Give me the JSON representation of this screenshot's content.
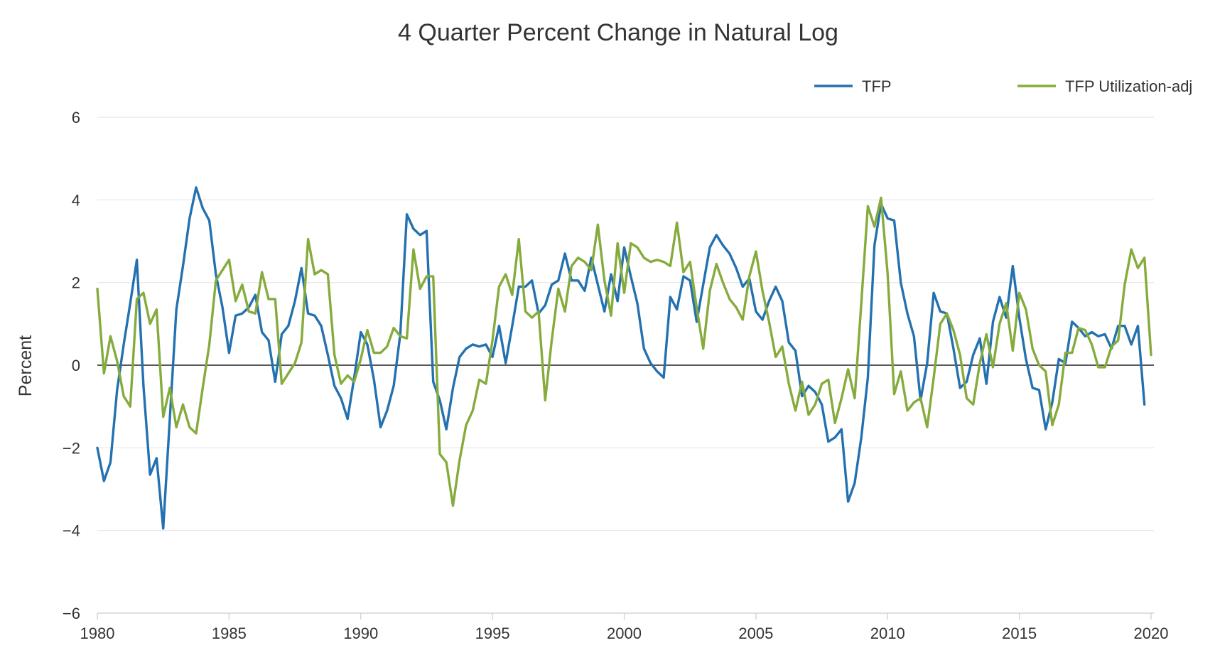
{
  "chart_data": {
    "type": "line",
    "title": "4 Quarter Percent Change in Natural Log",
    "ylabel": "Percent",
    "xlabel": "",
    "xlim": [
      1980,
      2020
    ],
    "ylim": [
      -6,
      6
    ],
    "x_ticks": [
      "1980",
      "1985",
      "1990",
      "1995",
      "2000",
      "2005",
      "2010",
      "2015",
      "2020"
    ],
    "y_ticks": [
      "6",
      "4",
      "2",
      "0",
      "−2",
      "−4",
      "−6"
    ],
    "grid": true,
    "legend_position": "top-right",
    "x_start": 1980.0,
    "x_step": 0.25,
    "series": [
      {
        "name": "TFP",
        "color": "#2471b0",
        "values": [
          -2.0,
          -2.8,
          -2.35,
          -0.6,
          0.5,
          1.5,
          2.55,
          -0.5,
          -2.65,
          -2.25,
          -3.95,
          -1.3,
          1.35,
          2.4,
          3.55,
          4.3,
          3.8,
          3.5,
          2.2,
          1.4,
          0.3,
          1.2,
          1.25,
          1.4,
          1.7,
          0.8,
          0.6,
          -0.4,
          0.75,
          0.95,
          1.55,
          2.35,
          1.25,
          1.2,
          0.95,
          0.25,
          -0.5,
          -0.8,
          -1.3,
          -0.3,
          0.8,
          0.5,
          -0.35,
          -1.5,
          -1.1,
          -0.5,
          0.75,
          3.65,
          3.3,
          3.15,
          3.25,
          -0.4,
          -0.85,
          -1.55,
          -0.55,
          0.2,
          0.4,
          0.5,
          0.45,
          0.5,
          0.2,
          0.95,
          0.05,
          0.95,
          1.9,
          1.9,
          2.05,
          1.25,
          1.45,
          1.95,
          2.05,
          2.7,
          2.05,
          2.05,
          1.8,
          2.6,
          1.95,
          1.3,
          2.2,
          1.55,
          2.85,
          2.15,
          1.5,
          0.4,
          0.05,
          -0.15,
          -0.3,
          1.65,
          1.35,
          2.15,
          2.05,
          1.05,
          1.95,
          2.85,
          3.15,
          2.9,
          2.7,
          2.35,
          1.9,
          2.1,
          1.3,
          1.1,
          1.55,
          1.9,
          1.55,
          0.55,
          0.35,
          -0.75,
          -0.5,
          -0.65,
          -0.95,
          -1.85,
          -1.75,
          -1.55,
          -3.3,
          -2.85,
          -1.75,
          -0.3,
          2.9,
          3.9,
          3.55,
          3.5,
          2.0,
          1.25,
          0.7,
          -0.85,
          0.05,
          1.75,
          1.3,
          1.25,
          0.4,
          -0.55,
          -0.4,
          0.25,
          0.65,
          -0.45,
          1.05,
          1.65,
          1.15,
          2.4,
          1.15,
          0.15,
          -0.55,
          -0.6,
          -1.55,
          -0.9,
          0.15,
          0.05,
          1.05,
          0.9,
          0.7,
          0.8,
          0.7,
          0.75,
          0.4,
          0.95,
          0.95,
          0.5,
          0.95,
          -0.95
        ]
      },
      {
        "name": "TFP Utilization-adj",
        "color": "#86ab3d",
        "values": [
          1.85,
          -0.2,
          0.7,
          0.1,
          -0.75,
          -1.0,
          1.6,
          1.75,
          1.0,
          1.35,
          -1.25,
          -0.55,
          -1.5,
          -0.95,
          -1.5,
          -1.65,
          -0.55,
          0.5,
          2.05,
          2.3,
          2.55,
          1.55,
          1.95,
          1.3,
          1.25,
          2.25,
          1.6,
          1.6,
          -0.45,
          -0.2,
          0.05,
          0.55,
          3.05,
          2.2,
          2.3,
          2.2,
          0.25,
          -0.45,
          -0.25,
          -0.4,
          0.15,
          0.85,
          0.3,
          0.3,
          0.45,
          0.9,
          0.7,
          0.65,
          2.8,
          1.85,
          2.15,
          2.15,
          -2.15,
          -2.35,
          -3.4,
          -2.3,
          -1.45,
          -1.1,
          -0.35,
          -0.45,
          0.6,
          1.9,
          2.2,
          1.7,
          3.05,
          1.3,
          1.15,
          1.3,
          -0.85,
          0.6,
          1.85,
          1.3,
          2.4,
          2.6,
          2.5,
          2.3,
          3.4,
          2.05,
          1.2,
          2.95,
          1.75,
          2.95,
          2.85,
          2.6,
          2.5,
          2.55,
          2.5,
          2.4,
          3.45,
          2.25,
          2.5,
          1.4,
          0.4,
          1.8,
          2.45,
          2.0,
          1.6,
          1.4,
          1.1,
          2.15,
          2.75,
          1.8,
          1.05,
          0.2,
          0.45,
          -0.45,
          -1.1,
          -0.4,
          -1.2,
          -0.95,
          -0.45,
          -0.35,
          -1.4,
          -0.8,
          -0.1,
          -0.8,
          1.5,
          3.85,
          3.35,
          4.05,
          2.2,
          -0.7,
          -0.15,
          -1.1,
          -0.9,
          -0.8,
          -1.5,
          -0.3,
          1.0,
          1.25,
          0.85,
          0.25,
          -0.8,
          -0.95,
          0.05,
          0.75,
          -0.05,
          1.0,
          1.5,
          0.35,
          1.75,
          1.35,
          0.4,
          0.0,
          -0.15,
          -1.45,
          -0.95,
          0.3,
          0.3,
          0.9,
          0.85,
          0.5,
          -0.05,
          -0.05,
          0.45,
          0.6,
          1.95,
          2.8,
          2.35,
          2.6,
          0.25
        ]
      }
    ]
  }
}
